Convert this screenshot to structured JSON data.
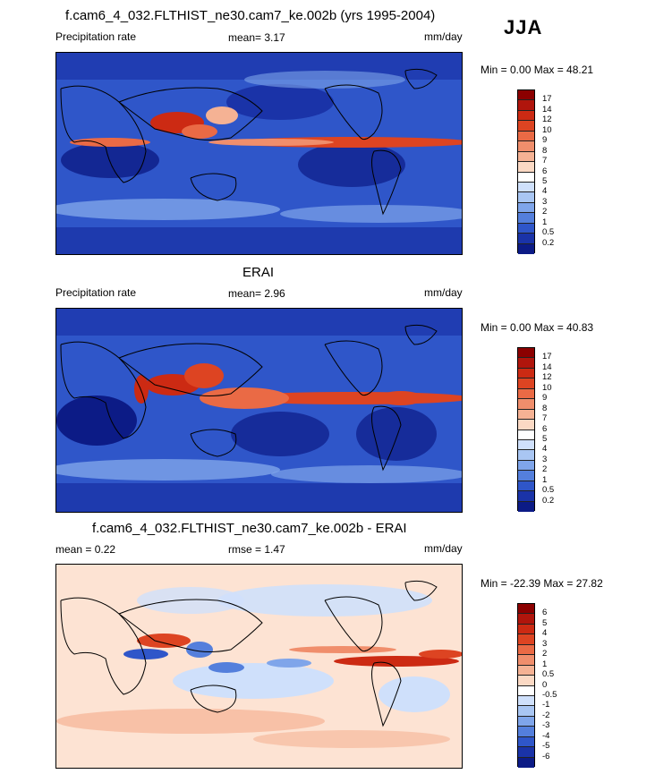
{
  "season": "JJA",
  "panels": [
    {
      "title": "f.cam6_4_032.FLTHIST_ne30.cam7_ke.002b (yrs 1995-2004)",
      "left_label": "Precipitation rate",
      "center_label": "mean=   3.17",
      "units": "mm/day",
      "minmax": "Min =   0.00 Max =  48.21",
      "colorbar_ticks": [
        "17",
        "14",
        "12",
        "10",
        "9",
        "8",
        "7",
        "6",
        "5",
        "4",
        "3",
        "2",
        "1",
        "0.5",
        "0.2"
      ],
      "colorbar_colors": [
        "#8b0000",
        "#b0150c",
        "#cc2a13",
        "#dd4422",
        "#ea6a45",
        "#f08e6c",
        "#f5b294",
        "#fbd9c4",
        "#ffffff",
        "#cfe0fb",
        "#a9c6f3",
        "#7fa5ea",
        "#547fdc",
        "#2f56c9",
        "#1a33a8",
        "#0c1b86"
      ],
      "background": "#2f56c9"
    },
    {
      "title": "ERAI",
      "left_label": "Precipitation rate",
      "center_label": "mean=   2.96",
      "units": "mm/day",
      "minmax": "Min =   0.00 Max =  40.83",
      "colorbar_ticks": [
        "17",
        "14",
        "12",
        "10",
        "9",
        "8",
        "7",
        "6",
        "5",
        "4",
        "3",
        "2",
        "1",
        "0.5",
        "0.2"
      ],
      "colorbar_colors": [
        "#8b0000",
        "#b0150c",
        "#cc2a13",
        "#dd4422",
        "#ea6a45",
        "#f08e6c",
        "#f5b294",
        "#fbd9c4",
        "#ffffff",
        "#cfe0fb",
        "#a9c6f3",
        "#7fa5ea",
        "#547fdc",
        "#2f56c9",
        "#1a33a8",
        "#0c1b86"
      ],
      "background": "#2f56c9"
    },
    {
      "title": "f.cam6_4_032.FLTHIST_ne30.cam7_ke.002b - ERAI",
      "left_label": "mean =   0.22",
      "center_label": "rmse =   1.47",
      "units": "mm/day",
      "minmax": "Min = -22.39 Max =  27.82",
      "colorbar_ticks": [
        "6",
        "5",
        "4",
        "3",
        "2",
        "1",
        "0.5",
        "0",
        "-0.5",
        "-1",
        "-2",
        "-3",
        "-4",
        "-5",
        "-6"
      ],
      "colorbar_colors": [
        "#8b0000",
        "#b0150c",
        "#cc2a13",
        "#dd4422",
        "#ea6a45",
        "#f08e6c",
        "#f5b294",
        "#fbd9c4",
        "#ffffff",
        "#cfe0fb",
        "#a9c6f3",
        "#7fa5ea",
        "#547fdc",
        "#2f56c9",
        "#1a33a8",
        "#0c1b86"
      ],
      "background": "#fde3d3"
    }
  ]
}
